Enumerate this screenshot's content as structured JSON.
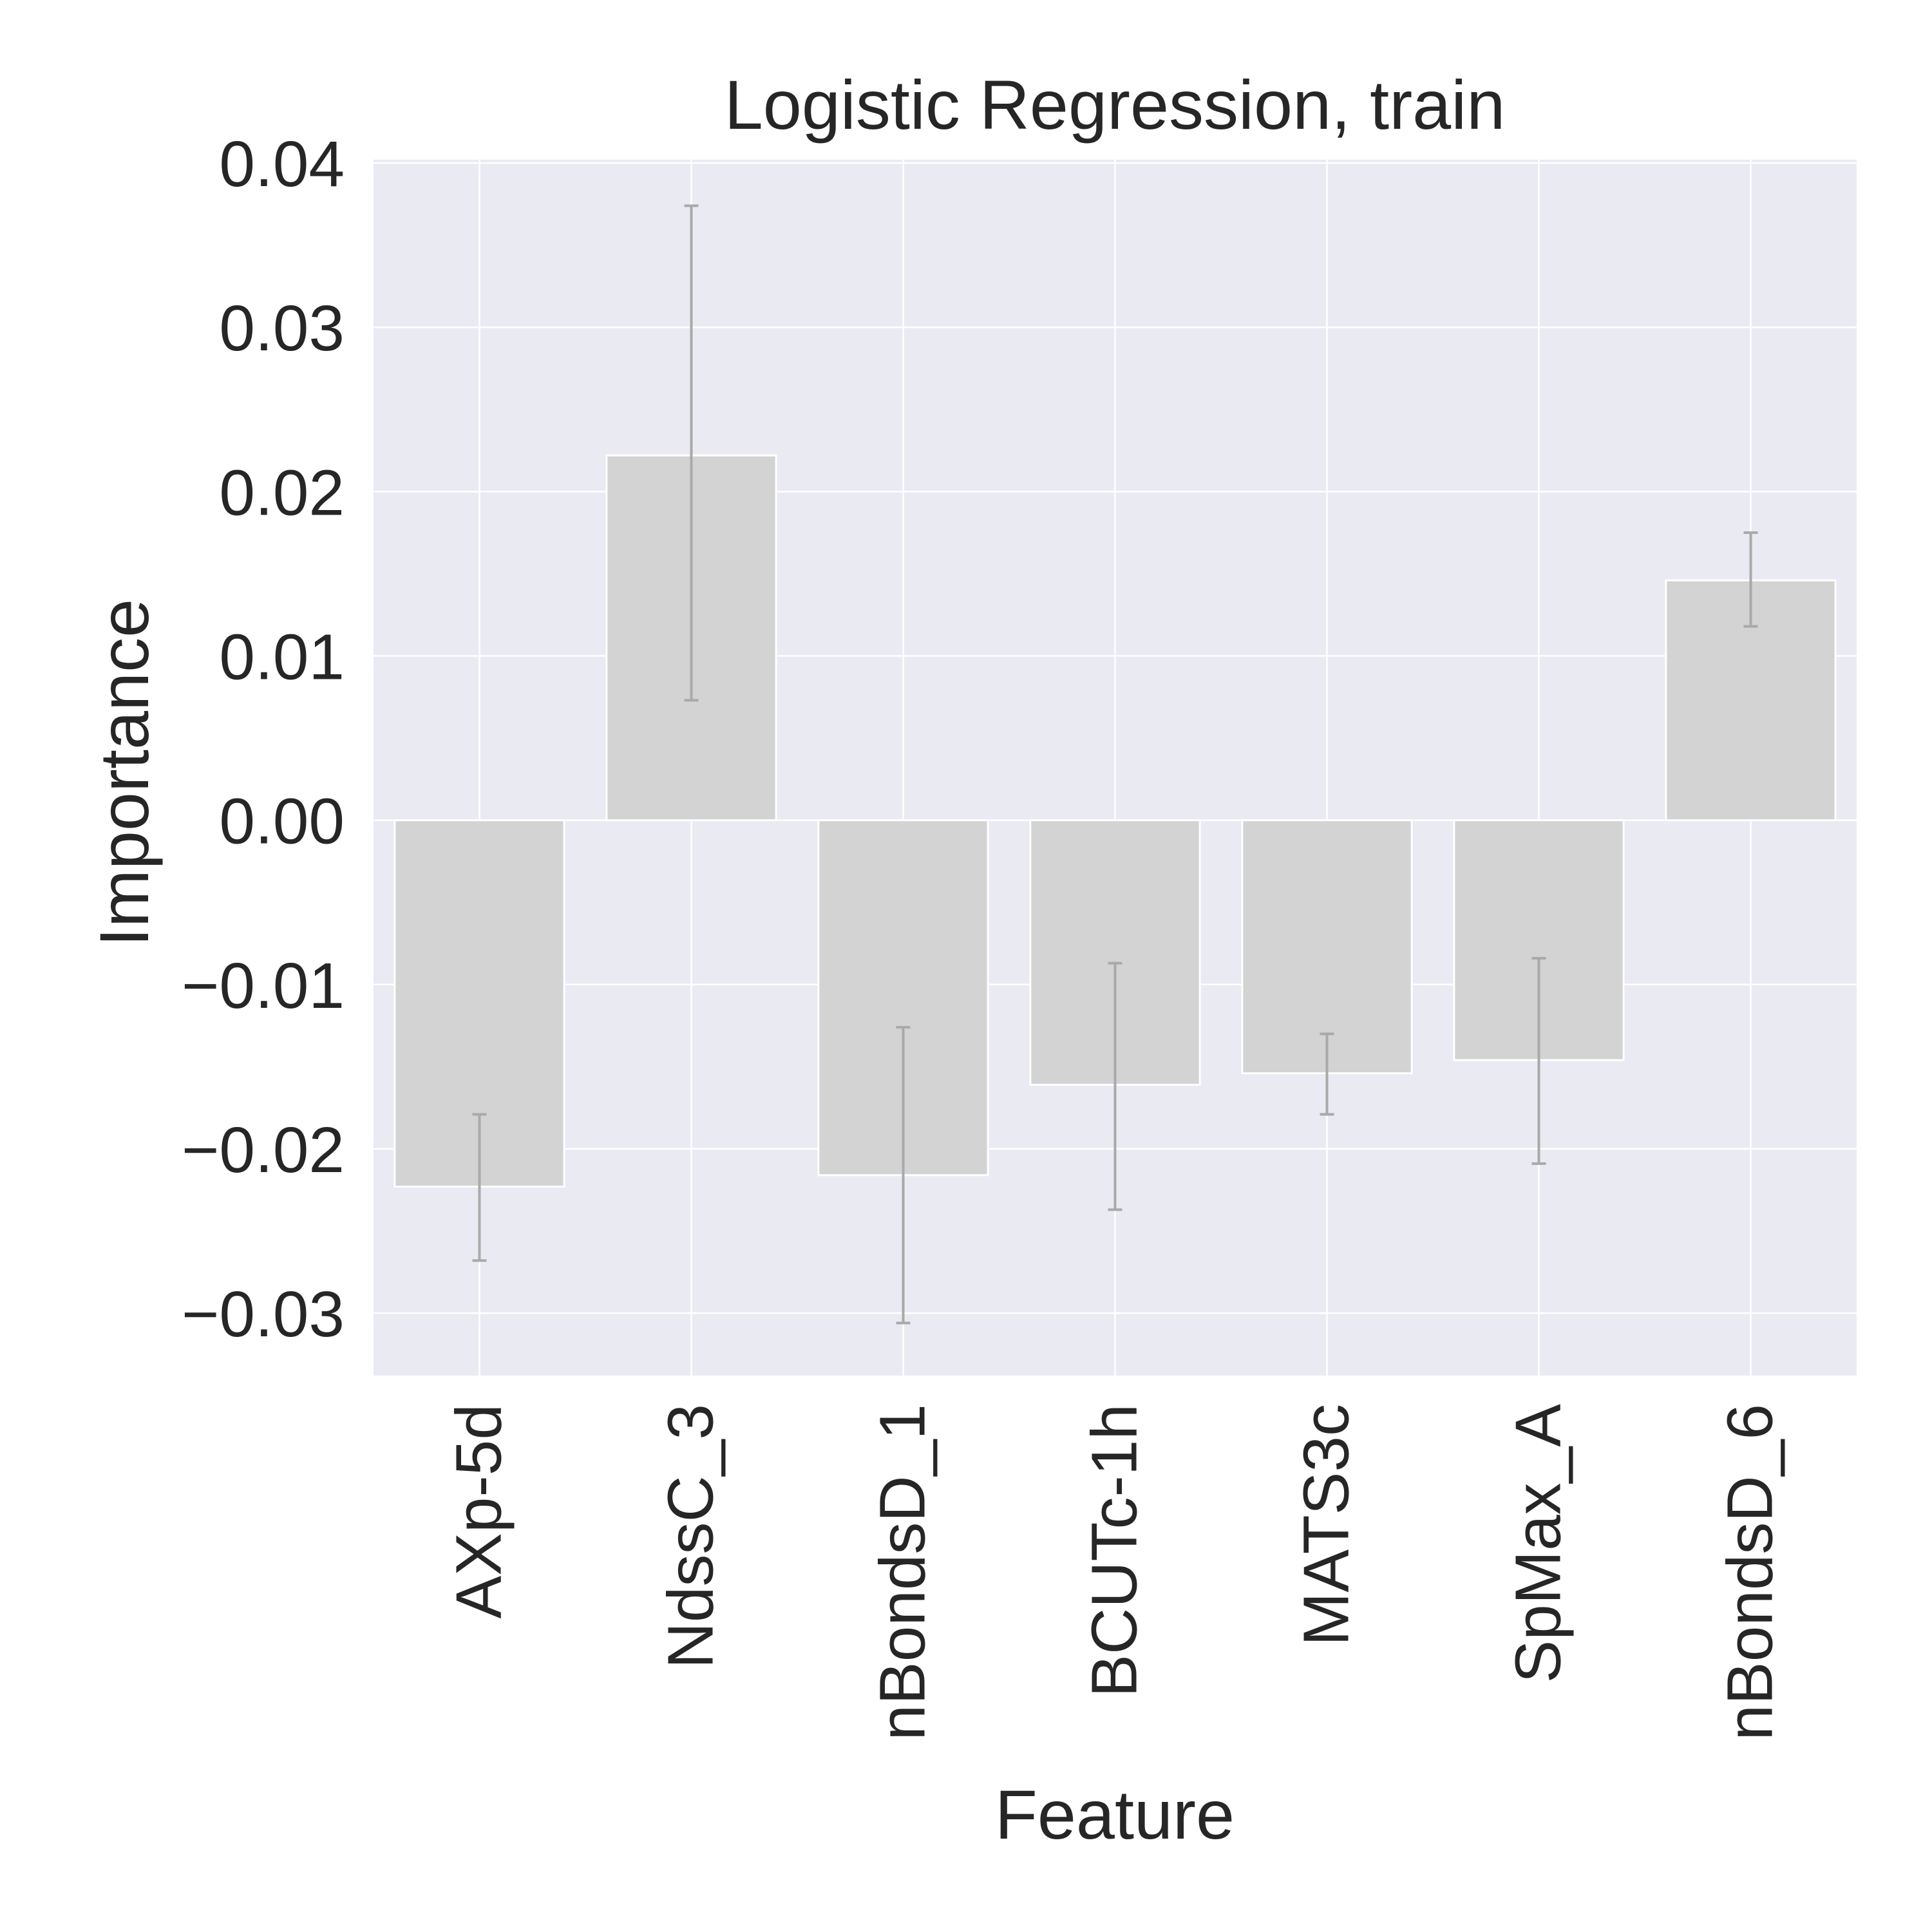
{
  "chart_data": {
    "type": "bar",
    "title": "Logistic Regression, train",
    "xlabel": "Feature",
    "ylabel": "Importance",
    "categories": [
      "AXp-5d",
      "NdssC_3",
      "nBondsD_1",
      "BCUTc-1h",
      "MATS3c",
      "SpMax_A",
      "nBondsD_6"
    ],
    "values": [
      -0.0223,
      0.0222,
      -0.0216,
      -0.0161,
      -0.0154,
      -0.0146,
      0.0146
    ],
    "error_low": [
      -0.0268,
      0.0073,
      -0.0306,
      -0.0237,
      -0.0179,
      -0.0209,
      0.0118
    ],
    "error_high": [
      -0.0179,
      0.0374,
      -0.0126,
      -0.0087,
      -0.013,
      -0.0084,
      0.0175
    ],
    "ylim": [
      -0.0338,
      0.0402
    ],
    "yticks": [
      0.04,
      0.03,
      0.02,
      0.01,
      0.0,
      -0.01,
      -0.02,
      -0.03
    ],
    "ytick_labels": [
      "0.04",
      "0.03",
      "0.02",
      "0.01",
      "0.00",
      "−0.01",
      "−0.02",
      "−0.03"
    ],
    "grid": true,
    "colors": {
      "background": "#eaeaf2",
      "grid": "#ffffff",
      "bar": "#d3d3d3",
      "bar_edge": "#ffffff",
      "errorbar": "#a9a9a9",
      "text": "#262626"
    }
  }
}
